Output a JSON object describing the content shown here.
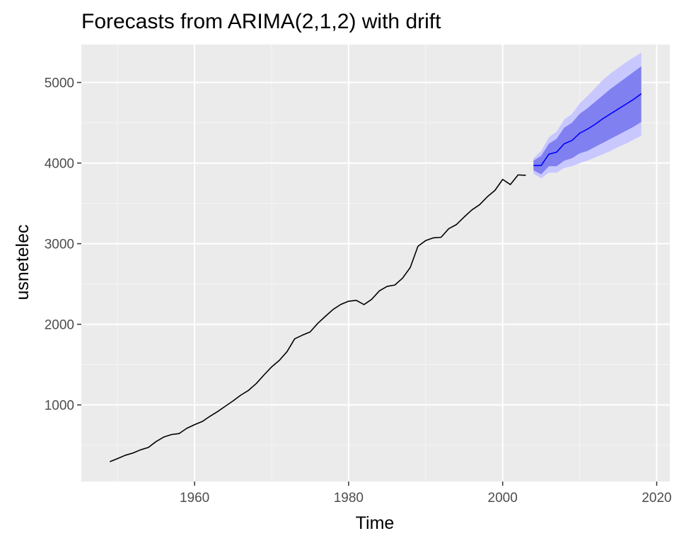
{
  "chart_data": {
    "type": "line",
    "title": "Forecasts from ARIMA(2,1,2) with drift",
    "xlabel": "Time",
    "ylabel": "usnetelec",
    "xlim": [
      1945.3,
      2021.7
    ],
    "ylim": [
      50,
      5470
    ],
    "x_ticks": [
      1960,
      1980,
      2000,
      2020
    ],
    "x_tick_labels": [
      "1960",
      "1980",
      "2000",
      "2020"
    ],
    "y_ticks": [
      1000,
      2000,
      3000,
      4000,
      5000
    ],
    "y_tick_labels": [
      "1000",
      "2000",
      "3000",
      "4000",
      "5000"
    ],
    "grid": true,
    "colors": {
      "panel_bg": "#ebebeb",
      "grid_major": "#ffffff",
      "grid_minor": "#f5f5f5",
      "history_line": "#000000",
      "forecast_line": "#0000ff",
      "band_95": "#c8c8ff",
      "band_80": "#8080f0"
    },
    "series": [
      {
        "x": [
          1949,
          1950,
          1951,
          1952,
          1953,
          1954,
          1955,
          1956,
          1957,
          1958,
          1959,
          1960,
          1961,
          1962,
          1963,
          1964,
          1965,
          1966,
          1967,
          1968,
          1969,
          1970,
          1971,
          1972,
          1973,
          1974,
          1975,
          1976,
          1977,
          1978,
          1979,
          1980,
          1981,
          1982,
          1983,
          1984,
          1985,
          1986,
          1987,
          1988,
          1989,
          1990,
          1991,
          1992,
          1993,
          1994,
          1995,
          1996,
          1997,
          1998,
          1999,
          2000,
          2001,
          2002,
          2003
        ],
        "values": [
          296,
          334,
          375,
          403,
          443,
          472,
          545,
          601,
          632,
          645,
          710,
          755,
          794,
          859,
          918,
          984,
          1050,
          1121,
          1180,
          1264,
          1370,
          1471,
          1552,
          1660,
          1820,
          1865,
          1905,
          2012,
          2100,
          2185,
          2247,
          2286,
          2297,
          2244,
          2310,
          2415,
          2470,
          2487,
          2572,
          2704,
          2967,
          3038,
          3072,
          3079,
          3186,
          3237,
          3331,
          3418,
          3483,
          3581,
          3661,
          3797,
          3733,
          3853,
          3848
        ]
      },
      {
        "x": [
          2004,
          2005,
          2006,
          2007,
          2008,
          2009,
          2010,
          2011,
          2012,
          2013,
          2014,
          2015,
          2016,
          2017,
          2018
        ],
        "values": [
          3970,
          3970,
          4110,
          4135,
          4240,
          4280,
          4370,
          4420,
          4480,
          4550,
          4610,
          4670,
          4730,
          4790,
          4860
        ],
        "lo80": [
          3910,
          3860,
          3960,
          3960,
          4030,
          4060,
          4120,
          4150,
          4200,
          4250,
          4300,
          4350,
          4400,
          4450,
          4510
        ],
        "hi80": [
          4030,
          4090,
          4240,
          4300,
          4440,
          4500,
          4610,
          4680,
          4760,
          4840,
          4920,
          4990,
          5060,
          5130,
          5200
        ],
        "lo95": [
          3870,
          3810,
          3880,
          3880,
          3940,
          3960,
          4000,
          4030,
          4070,
          4110,
          4150,
          4200,
          4240,
          4290,
          4340
        ],
        "hi95": [
          4060,
          4150,
          4320,
          4390,
          4540,
          4610,
          4740,
          4830,
          4930,
          5030,
          5110,
          5180,
          5250,
          5310,
          5370
        ]
      }
    ]
  }
}
